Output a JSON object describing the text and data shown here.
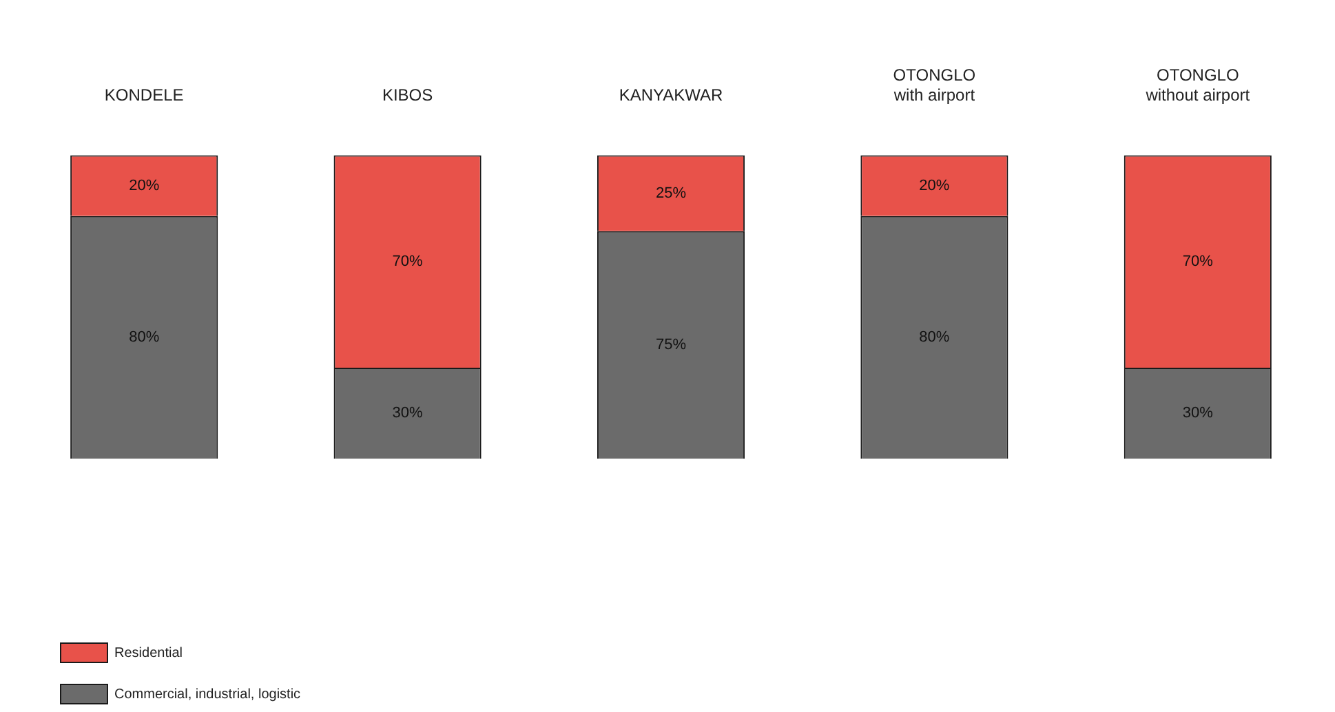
{
  "chart_data": {
    "type": "bar",
    "stacked": true,
    "categories": [
      "KONDELE",
      "KIBOS",
      "KANYAKWAR",
      "OTONGLO\nwith airport",
      "OTONGLO\nwithout airport"
    ],
    "series": [
      {
        "name": "Commercial, industrial, logistic",
        "color": "#6b6b6b",
        "values": [
          80,
          30,
          75,
          80,
          30
        ],
        "value_labels": [
          "80%",
          "30%",
          "75%",
          "80%",
          "30%"
        ]
      },
      {
        "name": "Residential",
        "color": "#e8524a",
        "values": [
          20,
          70,
          25,
          20,
          70
        ],
        "value_labels": [
          "20%",
          "70%",
          "25%",
          "20%",
          "70%"
        ]
      }
    ],
    "ylim": [
      0,
      100
    ],
    "tick_labels": "x",
    "grid": false,
    "legend": "bottom left"
  }
}
